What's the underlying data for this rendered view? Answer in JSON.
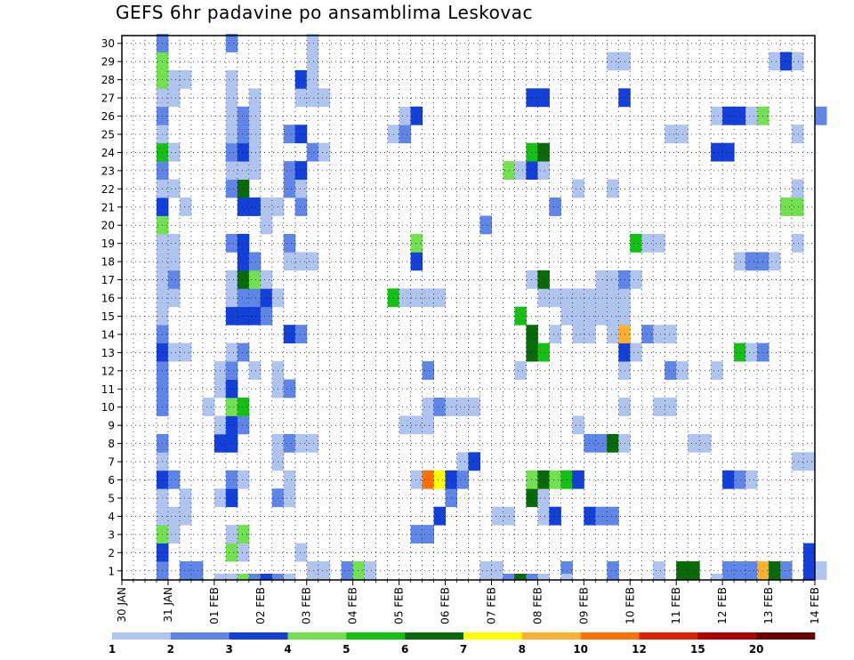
{
  "chart_data": {
    "type": "heatmap",
    "title": "GEFS 6hr padavine po ansamblima Leskovac",
    "x_ticks": [
      "30 JAN",
      "31 JAN",
      "01 FEB",
      "02 FEB",
      "03 FEB",
      "04 FEB",
      "05 FEB",
      "06 FEB",
      "07 FEB",
      "08 FEB",
      "09 FEB",
      "10 FEB",
      "11 FEB",
      "12 FEB",
      "13 FEB",
      "14 FEB"
    ],
    "y_ticks": [
      "1",
      "2",
      "3",
      "4",
      "5",
      "6",
      "7",
      "8",
      "9",
      "10",
      "11",
      "12",
      "13",
      "14",
      "15",
      "16",
      "17",
      "18",
      "19",
      "20",
      "21",
      "22",
      "23",
      "24",
      "25",
      "26",
      "27",
      "28",
      "29",
      "30"
    ],
    "time_step_hours": 6,
    "members": 30,
    "legend": {
      "thresholds": [
        "1",
        "2",
        "3",
        "4",
        "5",
        "6",
        "7",
        "8",
        "10",
        "12",
        "15",
        "20"
      ],
      "colors": [
        "#b0c4f0",
        "#5f86e6",
        "#1240d8",
        "#72e050",
        "#15c015",
        "#0a6a0a",
        "#ffff00",
        "#ffb030",
        "#ff7000",
        "#e02000",
        "#b00000",
        "#6a0000"
      ]
    },
    "grid": true,
    "cells": [
      [
        1,
        3,
        2
      ],
      [
        1,
        5,
        2
      ],
      [
        1,
        6,
        2
      ],
      [
        1,
        16,
        1
      ],
      [
        1,
        17,
        1
      ],
      [
        1,
        19,
        2
      ],
      [
        1,
        20,
        4
      ],
      [
        1,
        21,
        1
      ],
      [
        1,
        31,
        1
      ],
      [
        1,
        32,
        1
      ],
      [
        1,
        38,
        2
      ],
      [
        1,
        42,
        2
      ],
      [
        1,
        46,
        1
      ],
      [
        1,
        48,
        6
      ],
      [
        1,
        49,
        6
      ],
      [
        1,
        52,
        2
      ],
      [
        1,
        53,
        2
      ],
      [
        1,
        54,
        2
      ],
      [
        1,
        55,
        8
      ],
      [
        1,
        56,
        6
      ],
      [
        1,
        57,
        2
      ],
      [
        1,
        59,
        3
      ],
      [
        1,
        60,
        1
      ],
      [
        2,
        3,
        3
      ],
      [
        2,
        9,
        4
      ],
      [
        2,
        10,
        1
      ],
      [
        2,
        15,
        1
      ],
      [
        2,
        59,
        3
      ],
      [
        3,
        3,
        4
      ],
      [
        3,
        4,
        1
      ],
      [
        3,
        9,
        1
      ],
      [
        3,
        10,
        4
      ],
      [
        3,
        25,
        2
      ],
      [
        3,
        26,
        2
      ],
      [
        4,
        3,
        1
      ],
      [
        4,
        4,
        1
      ],
      [
        4,
        5,
        1
      ],
      [
        4,
        27,
        3
      ],
      [
        4,
        32,
        1
      ],
      [
        4,
        33,
        1
      ],
      [
        4,
        36,
        1
      ],
      [
        4,
        37,
        3
      ],
      [
        4,
        40,
        3
      ],
      [
        4,
        41,
        2
      ],
      [
        4,
        42,
        2
      ],
      [
        5,
        3,
        1
      ],
      [
        5,
        5,
        1
      ],
      [
        5,
        8,
        1
      ],
      [
        5,
        9,
        3
      ],
      [
        5,
        13,
        2
      ],
      [
        5,
        14,
        1
      ],
      [
        5,
        28,
        2
      ],
      [
        5,
        35,
        6
      ],
      [
        5,
        36,
        1
      ],
      [
        6,
        3,
        3
      ],
      [
        6,
        4,
        2
      ],
      [
        6,
        9,
        2
      ],
      [
        6,
        10,
        1
      ],
      [
        6,
        14,
        1
      ],
      [
        6,
        25,
        1
      ],
      [
        6,
        26,
        9
      ],
      [
        6,
        27,
        7
      ],
      [
        6,
        28,
        3
      ],
      [
        6,
        29,
        2
      ],
      [
        6,
        35,
        4
      ],
      [
        6,
        36,
        6
      ],
      [
        6,
        37,
        4
      ],
      [
        6,
        38,
        5
      ],
      [
        6,
        39,
        3
      ],
      [
        6,
        52,
        3
      ],
      [
        6,
        53,
        2
      ],
      [
        6,
        54,
        1
      ],
      [
        7,
        3,
        1
      ],
      [
        7,
        13,
        1
      ],
      [
        7,
        29,
        1
      ],
      [
        7,
        30,
        3
      ],
      [
        7,
        58,
        1
      ],
      [
        7,
        59,
        1
      ],
      [
        8,
        3,
        2
      ],
      [
        8,
        8,
        3
      ],
      [
        8,
        9,
        3
      ],
      [
        8,
        13,
        1
      ],
      [
        8,
        14,
        2
      ],
      [
        8,
        15,
        1
      ],
      [
        8,
        16,
        1
      ],
      [
        8,
        40,
        2
      ],
      [
        8,
        41,
        2
      ],
      [
        8,
        42,
        6
      ],
      [
        8,
        43,
        1
      ],
      [
        8,
        49,
        1
      ],
      [
        8,
        50,
        1
      ],
      [
        9,
        8,
        1
      ],
      [
        9,
        9,
        3
      ],
      [
        9,
        10,
        2
      ],
      [
        9,
        24,
        1
      ],
      [
        9,
        25,
        1
      ],
      [
        9,
        26,
        1
      ],
      [
        9,
        39,
        1
      ],
      [
        10,
        3,
        2
      ],
      [
        10,
        7,
        1
      ],
      [
        10,
        9,
        4
      ],
      [
        10,
        10,
        5
      ],
      [
        10,
        26,
        1
      ],
      [
        10,
        27,
        2
      ],
      [
        10,
        28,
        1
      ],
      [
        10,
        29,
        1
      ],
      [
        10,
        30,
        1
      ],
      [
        10,
        43,
        1
      ],
      [
        10,
        46,
        1
      ],
      [
        10,
        47,
        1
      ],
      [
        11,
        3,
        2
      ],
      [
        11,
        8,
        1
      ],
      [
        11,
        9,
        3
      ],
      [
        11,
        13,
        1
      ],
      [
        11,
        14,
        2
      ],
      [
        12,
        3,
        2
      ],
      [
        12,
        8,
        1
      ],
      [
        12,
        9,
        2
      ],
      [
        12,
        11,
        1
      ],
      [
        12,
        13,
        1
      ],
      [
        12,
        26,
        2
      ],
      [
        12,
        34,
        1
      ],
      [
        12,
        43,
        1
      ],
      [
        12,
        47,
        2
      ],
      [
        12,
        48,
        1
      ],
      [
        12,
        51,
        1
      ],
      [
        13,
        3,
        3
      ],
      [
        13,
        4,
        1
      ],
      [
        13,
        5,
        1
      ],
      [
        13,
        9,
        1
      ],
      [
        13,
        10,
        2
      ],
      [
        13,
        35,
        6
      ],
      [
        13,
        36,
        5
      ],
      [
        13,
        43,
        3
      ],
      [
        13,
        44,
        1
      ],
      [
        13,
        53,
        5
      ],
      [
        13,
        54,
        1
      ],
      [
        13,
        55,
        2
      ],
      [
        14,
        3,
        2
      ],
      [
        14,
        14,
        3
      ],
      [
        14,
        15,
        2
      ],
      [
        14,
        35,
        6
      ],
      [
        14,
        37,
        1
      ],
      [
        14,
        39,
        1
      ],
      [
        14,
        40,
        1
      ],
      [
        14,
        42,
        1
      ],
      [
        14,
        43,
        8
      ],
      [
        14,
        45,
        2
      ],
      [
        14,
        46,
        1
      ],
      [
        14,
        47,
        1
      ],
      [
        15,
        3,
        1
      ],
      [
        15,
        9,
        3
      ],
      [
        15,
        10,
        3
      ],
      [
        15,
        11,
        3
      ],
      [
        15,
        12,
        2
      ],
      [
        15,
        34,
        5
      ],
      [
        15,
        38,
        1
      ],
      [
        15,
        39,
        1
      ],
      [
        15,
        40,
        1
      ],
      [
        15,
        41,
        1
      ],
      [
        15,
        42,
        1
      ],
      [
        15,
        43,
        1
      ],
      [
        16,
        3,
        1
      ],
      [
        16,
        4,
        1
      ],
      [
        16,
        9,
        1
      ],
      [
        16,
        10,
        2
      ],
      [
        16,
        11,
        2
      ],
      [
        16,
        12,
        3
      ],
      [
        16,
        13,
        1
      ],
      [
        16,
        23,
        5
      ],
      [
        16,
        24,
        1
      ],
      [
        16,
        25,
        1
      ],
      [
        16,
        26,
        1
      ],
      [
        16,
        27,
        1
      ],
      [
        16,
        36,
        1
      ],
      [
        16,
        37,
        1
      ],
      [
        16,
        38,
        1
      ],
      [
        16,
        39,
        1
      ],
      [
        16,
        40,
        1
      ],
      [
        16,
        41,
        1
      ],
      [
        16,
        42,
        1
      ],
      [
        16,
        43,
        1
      ],
      [
        17,
        3,
        1
      ],
      [
        17,
        4,
        2
      ],
      [
        17,
        9,
        1
      ],
      [
        17,
        10,
        6
      ],
      [
        17,
        11,
        4
      ],
      [
        17,
        12,
        1
      ],
      [
        17,
        35,
        1
      ],
      [
        17,
        36,
        6
      ],
      [
        17,
        41,
        1
      ],
      [
        17,
        42,
        1
      ],
      [
        17,
        43,
        2
      ],
      [
        17,
        44,
        1
      ],
      [
        18,
        3,
        1
      ],
      [
        18,
        4,
        1
      ],
      [
        18,
        10,
        3
      ],
      [
        18,
        11,
        2
      ],
      [
        18,
        14,
        1
      ],
      [
        18,
        15,
        1
      ],
      [
        18,
        16,
        1
      ],
      [
        18,
        25,
        3
      ],
      [
        18,
        53,
        1
      ],
      [
        18,
        54,
        2
      ],
      [
        18,
        55,
        2
      ],
      [
        18,
        56,
        1
      ],
      [
        19,
        3,
        1
      ],
      [
        19,
        4,
        1
      ],
      [
        19,
        9,
        2
      ],
      [
        19,
        10,
        3
      ],
      [
        19,
        14,
        2
      ],
      [
        19,
        25,
        4
      ],
      [
        19,
        44,
        5
      ],
      [
        19,
        45,
        1
      ],
      [
        19,
        46,
        1
      ],
      [
        19,
        58,
        1
      ],
      [
        20,
        3,
        4
      ],
      [
        20,
        12,
        1
      ],
      [
        20,
        31,
        2
      ],
      [
        21,
        3,
        3
      ],
      [
        21,
        5,
        1
      ],
      [
        21,
        10,
        3
      ],
      [
        21,
        11,
        3
      ],
      [
        21,
        12,
        1
      ],
      [
        21,
        13,
        1
      ],
      [
        21,
        15,
        2
      ],
      [
        21,
        37,
        2
      ],
      [
        21,
        57,
        4
      ],
      [
        21,
        58,
        4
      ],
      [
        22,
        3,
        1
      ],
      [
        22,
        4,
        1
      ],
      [
        22,
        9,
        2
      ],
      [
        22,
        10,
        6
      ],
      [
        22,
        14,
        2
      ],
      [
        22,
        15,
        1
      ],
      [
        22,
        39,
        1
      ],
      [
        22,
        42,
        1
      ],
      [
        22,
        58,
        1
      ],
      [
        23,
        3,
        2
      ],
      [
        23,
        9,
        1
      ],
      [
        23,
        10,
        1
      ],
      [
        23,
        11,
        1
      ],
      [
        23,
        14,
        2
      ],
      [
        23,
        15,
        3
      ],
      [
        23,
        33,
        4
      ],
      [
        23,
        34,
        1
      ],
      [
        23,
        35,
        3
      ],
      [
        23,
        36,
        1
      ],
      [
        24,
        3,
        5
      ],
      [
        24,
        4,
        1
      ],
      [
        24,
        9,
        2
      ],
      [
        24,
        10,
        3
      ],
      [
        24,
        11,
        1
      ],
      [
        24,
        16,
        2
      ],
      [
        24,
        17,
        1
      ],
      [
        24,
        35,
        5
      ],
      [
        24,
        36,
        6
      ],
      [
        24,
        51,
        3
      ],
      [
        24,
        52,
        3
      ],
      [
        25,
        3,
        1
      ],
      [
        25,
        9,
        1
      ],
      [
        25,
        10,
        2
      ],
      [
        25,
        11,
        1
      ],
      [
        25,
        14,
        2
      ],
      [
        25,
        15,
        3
      ],
      [
        25,
        23,
        1
      ],
      [
        25,
        24,
        2
      ],
      [
        25,
        47,
        1
      ],
      [
        25,
        48,
        1
      ],
      [
        25,
        58,
        1
      ],
      [
        26,
        3,
        2
      ],
      [
        26,
        9,
        1
      ],
      [
        26,
        10,
        2
      ],
      [
        26,
        11,
        1
      ],
      [
        26,
        24,
        1
      ],
      [
        26,
        25,
        3
      ],
      [
        26,
        51,
        1
      ],
      [
        26,
        52,
        3
      ],
      [
        26,
        53,
        3
      ],
      [
        26,
        54,
        1
      ],
      [
        26,
        55,
        4
      ],
      [
        26,
        60,
        2
      ],
      [
        27,
        3,
        1
      ],
      [
        27,
        4,
        1
      ],
      [
        27,
        9,
        1
      ],
      [
        27,
        11,
        1
      ],
      [
        27,
        15,
        1
      ],
      [
        27,
        16,
        1
      ],
      [
        27,
        17,
        1
      ],
      [
        27,
        35,
        3
      ],
      [
        27,
        36,
        3
      ],
      [
        27,
        43,
        3
      ],
      [
        28,
        3,
        4
      ],
      [
        28,
        4,
        1
      ],
      [
        28,
        5,
        1
      ],
      [
        28,
        9,
        1
      ],
      [
        28,
        15,
        3
      ],
      [
        28,
        16,
        1
      ],
      [
        29,
        3,
        4
      ],
      [
        29,
        16,
        1
      ],
      [
        29,
        42,
        1
      ],
      [
        29,
        43,
        1
      ],
      [
        29,
        56,
        1
      ],
      [
        29,
        57,
        3
      ],
      [
        29,
        58,
        1
      ],
      [
        30,
        3,
        2
      ],
      [
        30,
        9,
        2
      ],
      [
        30,
        16,
        1
      ]
    ],
    "bottom_strip": [
      [
        8,
        1
      ],
      [
        9,
        1
      ],
      [
        10,
        4
      ],
      [
        11,
        2
      ],
      [
        12,
        3
      ],
      [
        13,
        2
      ],
      [
        14,
        1
      ],
      [
        31,
        1
      ],
      [
        32,
        1
      ],
      [
        33,
        2
      ],
      [
        34,
        6
      ],
      [
        35,
        2
      ],
      [
        36,
        1
      ],
      [
        38,
        1
      ],
      [
        51,
        1
      ]
    ]
  }
}
